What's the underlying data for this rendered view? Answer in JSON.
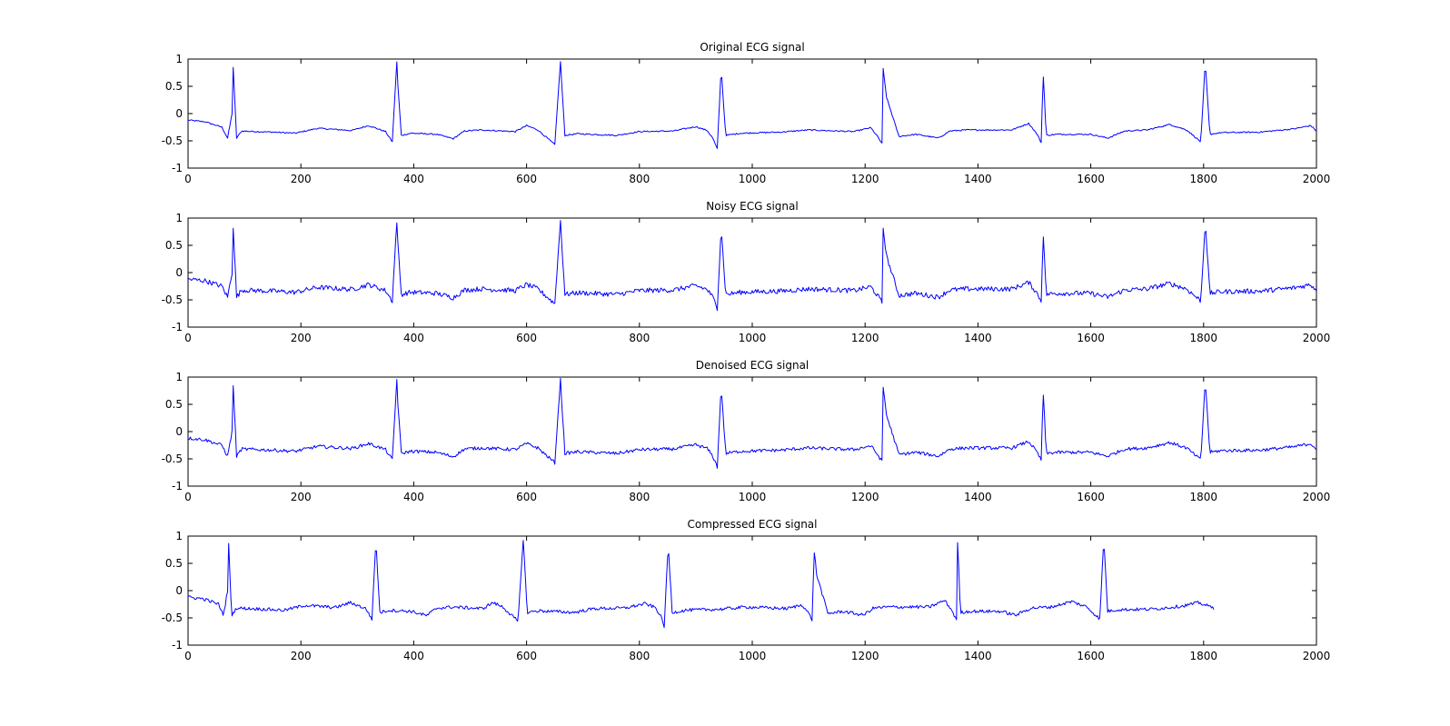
{
  "figure": {
    "background": "#ffffff",
    "axes_color": "#000000",
    "line_color": "#0000ff"
  },
  "chart_data": [
    {
      "type": "line",
      "title": "Original ECG signal",
      "xlim": [
        0,
        2000
      ],
      "ylim": [
        -1,
        1
      ],
      "xticks": [
        0,
        200,
        400,
        600,
        800,
        1000,
        1200,
        1400,
        1600,
        1800,
        2000
      ],
      "yticks": [
        1,
        0.5,
        0,
        -0.5,
        -1
      ],
      "xtick_labels": [
        "0",
        "200",
        "400",
        "600",
        "800",
        "1000",
        "1200",
        "1400",
        "1600",
        "1800",
        "2000"
      ],
      "ytick_labels": [
        "1",
        "0.5",
        "0",
        "-0.5",
        "-1"
      ],
      "grid": false,
      "noise": 0.012,
      "series": [
        {
          "x_end": 2000,
          "x": [
            0,
            30,
            60,
            70,
            78,
            80,
            86,
            95,
            150,
            190,
            230,
            290,
            320,
            350,
            362,
            370,
            372,
            378,
            395,
            440,
            470,
            490,
            520,
            580,
            600,
            620,
            650,
            660,
            662,
            668,
            690,
            760,
            800,
            860,
            900,
            920,
            930,
            938,
            945,
            947,
            953,
            980,
            1050,
            1100,
            1180,
            1210,
            1222,
            1230,
            1232,
            1238,
            1260,
            1290,
            1330,
            1350,
            1380,
            1460,
            1490,
            1505,
            1513,
            1515,
            1521,
            1540,
            1600,
            1630,
            1660,
            1700,
            1740,
            1770,
            1795,
            1803,
            1805,
            1811,
            1830,
            1900,
            1960,
            1990,
            2000
          ],
          "y": [
            -0.12,
            -0.15,
            -0.25,
            -0.45,
            0.0,
            0.85,
            -0.45,
            -0.32,
            -0.34,
            -0.36,
            -0.27,
            -0.31,
            -0.22,
            -0.33,
            -0.52,
            0.95,
            0.5,
            -0.4,
            -0.36,
            -0.38,
            -0.46,
            -0.32,
            -0.3,
            -0.33,
            -0.22,
            -0.3,
            -0.57,
            0.95,
            0.6,
            -0.4,
            -0.37,
            -0.4,
            -0.33,
            -0.32,
            -0.24,
            -0.31,
            -0.45,
            -0.65,
            0.85,
            0.5,
            -0.4,
            -0.36,
            -0.34,
            -0.3,
            -0.33,
            -0.26,
            -0.42,
            -0.55,
            0.82,
            0.3,
            -0.42,
            -0.38,
            -0.45,
            -0.32,
            -0.3,
            -0.3,
            -0.18,
            -0.38,
            -0.55,
            0.9,
            -0.4,
            -0.38,
            -0.38,
            -0.45,
            -0.32,
            -0.3,
            -0.2,
            -0.3,
            -0.52,
            0.95,
            0.6,
            -0.38,
            -0.35,
            -0.34,
            -0.28,
            -0.22,
            -0.32
          ]
        }
      ]
    },
    {
      "type": "line",
      "title": "Noisy ECG signal",
      "xlim": [
        0,
        2000
      ],
      "ylim": [
        -1,
        1
      ],
      "xticks": [
        0,
        200,
        400,
        600,
        800,
        1000,
        1200,
        1400,
        1600,
        1800,
        2000
      ],
      "yticks": [
        1,
        0.5,
        0,
        -0.5,
        -1
      ],
      "xtick_labels": [
        "0",
        "200",
        "400",
        "600",
        "800",
        "1000",
        "1200",
        "1400",
        "1600",
        "1800",
        "2000"
      ],
      "ytick_labels": [
        "1",
        "0.5",
        "0",
        "-0.5",
        "-1"
      ],
      "grid": false,
      "noise": 0.045,
      "series": [
        {
          "x_end": 2000,
          "x": [
            0,
            30,
            60,
            70,
            78,
            80,
            86,
            95,
            150,
            190,
            230,
            290,
            320,
            350,
            362,
            370,
            372,
            378,
            395,
            440,
            470,
            490,
            520,
            580,
            600,
            620,
            650,
            660,
            662,
            668,
            690,
            760,
            800,
            860,
            900,
            920,
            930,
            938,
            945,
            947,
            953,
            980,
            1050,
            1100,
            1180,
            1210,
            1222,
            1230,
            1232,
            1238,
            1260,
            1290,
            1330,
            1350,
            1380,
            1460,
            1490,
            1505,
            1513,
            1515,
            1521,
            1540,
            1600,
            1630,
            1660,
            1700,
            1740,
            1770,
            1795,
            1803,
            1805,
            1811,
            1830,
            1900,
            1960,
            1990,
            2000
          ],
          "y": [
            -0.12,
            -0.15,
            -0.25,
            -0.45,
            0.0,
            0.85,
            -0.45,
            -0.32,
            -0.34,
            -0.36,
            -0.27,
            -0.31,
            -0.22,
            -0.33,
            -0.52,
            0.95,
            0.5,
            -0.4,
            -0.36,
            -0.38,
            -0.46,
            -0.32,
            -0.3,
            -0.33,
            -0.22,
            -0.3,
            -0.57,
            0.95,
            0.6,
            -0.4,
            -0.37,
            -0.4,
            -0.33,
            -0.32,
            -0.24,
            -0.31,
            -0.45,
            -0.65,
            0.85,
            0.5,
            -0.4,
            -0.36,
            -0.34,
            -0.3,
            -0.33,
            -0.26,
            -0.42,
            -0.55,
            0.82,
            0.3,
            -0.42,
            -0.38,
            -0.45,
            -0.32,
            -0.3,
            -0.3,
            -0.18,
            -0.38,
            -0.55,
            0.9,
            -0.4,
            -0.38,
            -0.38,
            -0.45,
            -0.32,
            -0.3,
            -0.2,
            -0.3,
            -0.52,
            0.95,
            0.6,
            -0.38,
            -0.35,
            -0.34,
            -0.28,
            -0.22,
            -0.32
          ]
        }
      ]
    },
    {
      "type": "line",
      "title": "Denoised ECG signal",
      "xlim": [
        0,
        2000
      ],
      "ylim": [
        -1,
        1
      ],
      "xticks": [
        0,
        200,
        400,
        600,
        800,
        1000,
        1200,
        1400,
        1600,
        1800,
        2000
      ],
      "yticks": [
        1,
        0.5,
        0,
        -0.5,
        -1
      ],
      "xtick_labels": [
        "0",
        "200",
        "400",
        "600",
        "800",
        "1000",
        "1200",
        "1400",
        "1600",
        "1800",
        "2000"
      ],
      "ytick_labels": [
        "1",
        "0.5",
        "0",
        "-0.5",
        "-1"
      ],
      "grid": false,
      "noise": 0.03,
      "series": [
        {
          "x_end": 2000,
          "x": [
            0,
            30,
            60,
            70,
            78,
            80,
            86,
            95,
            150,
            190,
            230,
            290,
            320,
            350,
            362,
            370,
            372,
            378,
            395,
            440,
            470,
            490,
            520,
            580,
            600,
            620,
            650,
            660,
            662,
            668,
            690,
            760,
            800,
            860,
            900,
            920,
            930,
            938,
            945,
            947,
            953,
            980,
            1050,
            1100,
            1180,
            1210,
            1222,
            1230,
            1232,
            1238,
            1260,
            1290,
            1330,
            1350,
            1380,
            1460,
            1490,
            1505,
            1513,
            1515,
            1521,
            1540,
            1600,
            1630,
            1660,
            1700,
            1740,
            1770,
            1795,
            1803,
            1805,
            1811,
            1830,
            1900,
            1960,
            1990,
            2000
          ],
          "y": [
            -0.12,
            -0.15,
            -0.25,
            -0.45,
            0.0,
            0.85,
            -0.45,
            -0.32,
            -0.34,
            -0.36,
            -0.27,
            -0.31,
            -0.22,
            -0.33,
            -0.52,
            0.95,
            0.5,
            -0.4,
            -0.36,
            -0.38,
            -0.46,
            -0.32,
            -0.3,
            -0.33,
            -0.22,
            -0.3,
            -0.57,
            0.95,
            0.6,
            -0.4,
            -0.37,
            -0.4,
            -0.33,
            -0.32,
            -0.24,
            -0.31,
            -0.45,
            -0.65,
            0.85,
            0.5,
            -0.4,
            -0.36,
            -0.34,
            -0.3,
            -0.33,
            -0.26,
            -0.42,
            -0.55,
            0.82,
            0.3,
            -0.42,
            -0.38,
            -0.45,
            -0.32,
            -0.3,
            -0.3,
            -0.18,
            -0.38,
            -0.55,
            0.9,
            -0.4,
            -0.38,
            -0.38,
            -0.45,
            -0.32,
            -0.3,
            -0.2,
            -0.3,
            -0.52,
            0.95,
            0.6,
            -0.38,
            -0.35,
            -0.34,
            -0.28,
            -0.22,
            -0.32
          ]
        }
      ]
    },
    {
      "type": "line",
      "title": "Compressed ECG signal",
      "xlim": [
        0,
        2000
      ],
      "ylim": [
        -1,
        1
      ],
      "xticks": [
        0,
        200,
        400,
        600,
        800,
        1000,
        1200,
        1400,
        1600,
        1800,
        2000
      ],
      "yticks": [
        1,
        0.5,
        0,
        -0.5,
        -1
      ],
      "xtick_labels": [
        "0",
        "200",
        "400",
        "600",
        "800",
        "1000",
        "1200",
        "1400",
        "1600",
        "1800",
        "2000"
      ],
      "ytick_labels": [
        "1",
        "0.5",
        "0",
        "-0.5",
        "-1"
      ],
      "grid": false,
      "noise": 0.03,
      "series": [
        {
          "x_end": 1818,
          "x": [
            0,
            27,
            54,
            63,
            70,
            72,
            77,
            86,
            135,
            171,
            207,
            261,
            288,
            315,
            326,
            333,
            335,
            340,
            356,
            396,
            423,
            441,
            468,
            522,
            540,
            558,
            585,
            594,
            596,
            601,
            621,
            684,
            720,
            774,
            810,
            828,
            837,
            844,
            851,
            853,
            858,
            882,
            945,
            990,
            1062,
            1089,
            1100,
            1107,
            1109,
            1114,
            1134,
            1161,
            1197,
            1215,
            1242,
            1314,
            1341,
            1355,
            1362,
            1364,
            1369,
            1386,
            1440,
            1467,
            1494,
            1530,
            1566,
            1593,
            1616,
            1623,
            1625,
            1630,
            1647,
            1710,
            1764,
            1791,
            1818
          ],
          "y": [
            -0.12,
            -0.15,
            -0.25,
            -0.45,
            0.0,
            0.85,
            -0.45,
            -0.32,
            -0.34,
            -0.36,
            -0.27,
            -0.31,
            -0.22,
            -0.33,
            -0.52,
            0.95,
            0.5,
            -0.4,
            -0.36,
            -0.38,
            -0.46,
            -0.32,
            -0.3,
            -0.33,
            -0.22,
            -0.3,
            -0.57,
            0.95,
            0.6,
            -0.4,
            -0.37,
            -0.4,
            -0.33,
            -0.32,
            -0.24,
            -0.31,
            -0.45,
            -0.65,
            0.85,
            0.5,
            -0.4,
            -0.36,
            -0.34,
            -0.3,
            -0.33,
            -0.26,
            -0.42,
            -0.55,
            0.82,
            0.3,
            -0.42,
            -0.38,
            -0.45,
            -0.32,
            -0.3,
            -0.3,
            -0.18,
            -0.38,
            -0.55,
            0.9,
            -0.4,
            -0.38,
            -0.38,
            -0.45,
            -0.32,
            -0.3,
            -0.2,
            -0.3,
            -0.52,
            0.95,
            0.6,
            -0.38,
            -0.35,
            -0.34,
            -0.28,
            -0.22,
            -0.32
          ]
        }
      ]
    }
  ]
}
